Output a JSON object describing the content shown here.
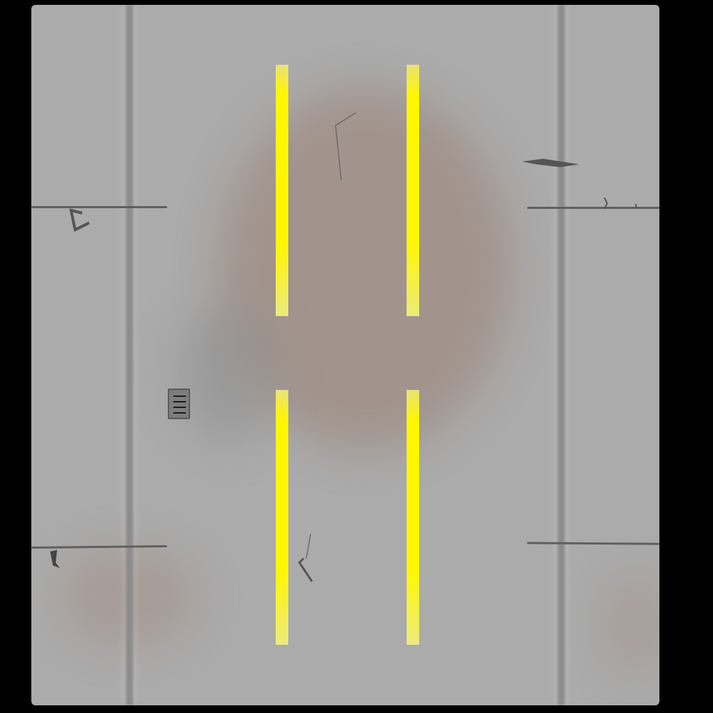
{
  "scene": {
    "type": "top-down road tile",
    "background_color": "#000000",
    "surface_color": "#ababab",
    "stain_color": "#9a8a80",
    "seam_color": "#8c8c8c",
    "lane_line_color": "#fff700",
    "lane_lines": {
      "count": 4,
      "style": "solid-segments"
    },
    "storm_drain": {
      "count": 1,
      "slots": 4
    },
    "cracks": {
      "count": 4
    }
  }
}
